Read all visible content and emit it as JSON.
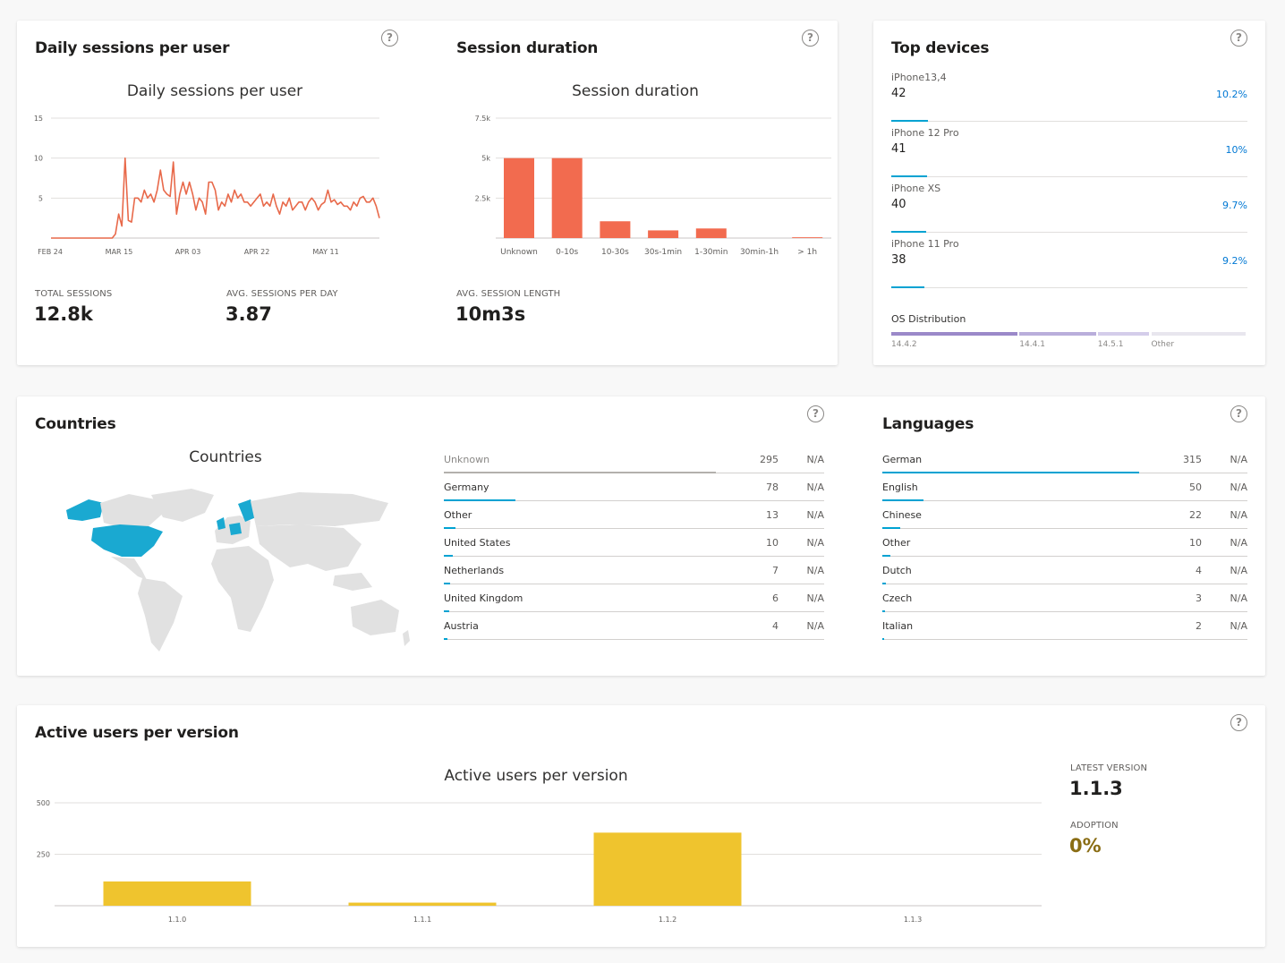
{
  "sessions_card": {
    "title": "Daily sessions per user",
    "chart_title": "Daily sessions per user",
    "total_sessions_label": "TOTAL SESSIONS",
    "total_sessions_value": "12.8k",
    "avg_sessions_label": "AVG. SESSIONS PER DAY",
    "avg_sessions_value": "3.87"
  },
  "duration_card": {
    "title": "Session duration",
    "chart_title": "Session duration",
    "avg_length_label": "AVG. SESSION LENGTH",
    "avg_length_value": "10m3s"
  },
  "devices_card": {
    "title": "Top devices",
    "devices": [
      {
        "name": "iPhone13,4",
        "count": "42",
        "pct": "10.2%",
        "share": 0.102
      },
      {
        "name": "iPhone 12 Pro",
        "count": "41",
        "pct": "10%",
        "share": 0.1
      },
      {
        "name": "iPhone XS",
        "count": "40",
        "pct": "9.7%",
        "share": 0.097
      },
      {
        "name": "iPhone 11 Pro",
        "count": "38",
        "pct": "9.2%",
        "share": 0.092
      }
    ],
    "os_label": "OS Distribution",
    "os": [
      {
        "name": "14.4.2",
        "share": 0.36,
        "color": "#9b89c9"
      },
      {
        "name": "14.4.1",
        "share": 0.22,
        "color": "#b9aedb"
      },
      {
        "name": "14.5.1",
        "share": 0.15,
        "color": "#d4cdea"
      },
      {
        "name": "Other",
        "share": 0.27,
        "color": "#e8e6ee"
      }
    ]
  },
  "countries_card": {
    "title": "Countries",
    "chart_title": "Countries",
    "rows": [
      {
        "name": "Unknown",
        "count": "295",
        "na": "N/A",
        "share": 1.0,
        "color": "#b3b0ad"
      },
      {
        "name": "Germany",
        "count": "78",
        "na": "N/A",
        "share": 0.264,
        "color": "#00a2d2"
      },
      {
        "name": "Other",
        "count": "13",
        "na": "N/A",
        "share": 0.044,
        "color": "#00a2d2"
      },
      {
        "name": "United States",
        "count": "10",
        "na": "N/A",
        "share": 0.034,
        "color": "#00a2d2"
      },
      {
        "name": "Netherlands",
        "count": "7",
        "na": "N/A",
        "share": 0.024,
        "color": "#00a2d2"
      },
      {
        "name": "United Kingdom",
        "count": "6",
        "na": "N/A",
        "share": 0.02,
        "color": "#00a2d2"
      },
      {
        "name": "Austria",
        "count": "4",
        "na": "N/A",
        "share": 0.014,
        "color": "#00a2d2"
      }
    ]
  },
  "languages_card": {
    "title": "Languages",
    "rows": [
      {
        "name": "German",
        "count": "315",
        "na": "N/A",
        "share": 1.0
      },
      {
        "name": "English",
        "count": "50",
        "na": "N/A",
        "share": 0.159
      },
      {
        "name": "Chinese",
        "count": "22",
        "na": "N/A",
        "share": 0.07
      },
      {
        "name": "Other",
        "count": "10",
        "na": "N/A",
        "share": 0.032
      },
      {
        "name": "Dutch",
        "count": "4",
        "na": "N/A",
        "share": 0.013
      },
      {
        "name": "Czech",
        "count": "3",
        "na": "N/A",
        "share": 0.01
      },
      {
        "name": "Italian",
        "count": "2",
        "na": "N/A",
        "share": 0.006
      }
    ]
  },
  "versions_card": {
    "title": "Active users per version",
    "chart_title": "Active users per version",
    "latest_label": "LATEST VERSION",
    "latest_value": "1.1.3",
    "adoption_label": "ADOPTION",
    "adoption_value": "0%",
    "adoption_color": "#8a6d14"
  },
  "help_glyph": "?",
  "chart_data": [
    {
      "type": "line",
      "title": "Daily sessions per user",
      "x_ticks": [
        "FEB 24",
        "MAR 15",
        "APR 03",
        "APR 22",
        "MAY 11"
      ],
      "ylim": [
        0,
        15
      ],
      "y_ticks": [
        5,
        10,
        15
      ],
      "color": "#e8694a",
      "values": [
        0,
        0,
        0,
        0,
        0,
        0,
        0,
        0,
        0,
        0,
        0,
        0,
        0,
        0,
        0,
        0,
        0,
        0,
        0,
        0,
        0.5,
        3,
        1.5,
        10,
        2.2,
        2,
        5,
        5,
        4.5,
        6,
        5,
        5.5,
        4.5,
        6,
        8.5,
        6,
        5.5,
        5.2,
        9.5,
        3,
        5.5,
        7,
        5.5,
        7,
        5.5,
        3.5,
        5,
        4.5,
        3,
        7,
        7,
        6,
        3.5,
        4.5,
        4,
        5.5,
        4.5,
        6,
        5,
        5.5,
        4.5,
        4.5,
        4,
        4.5,
        5,
        5.5,
        4,
        4.5,
        4,
        5.5,
        4,
        3,
        4.5,
        4,
        5,
        3.5,
        4,
        4.5,
        4.5,
        3.5,
        4.5,
        5,
        4.5,
        3.5,
        4.2,
        4.5,
        6,
        4.5,
        4.8,
        4.2,
        4.5,
        4,
        4,
        3.5,
        4.5,
        4,
        5,
        5.2,
        4.5,
        4.5,
        5,
        4,
        2.5
      ]
    },
    {
      "type": "bar",
      "title": "Session duration",
      "categories": [
        "Unknown",
        "0-10s",
        "10-30s",
        "30s-1min",
        "1-30min",
        "30min-1h",
        "> 1h"
      ],
      "values": [
        5000,
        5000,
        1050,
        480,
        600,
        0,
        50
      ],
      "ylim": [
        0,
        7500
      ],
      "y_ticks": [
        "2.5k",
        "5k",
        "7.5k"
      ],
      "y_tick_values": [
        2500,
        5000,
        7500
      ],
      "color": "#f26b4f"
    },
    {
      "type": "bar",
      "title": "Active users per version",
      "categories": [
        "1.1.0",
        "1.1.1",
        "1.1.2",
        "1.1.3"
      ],
      "values": [
        118,
        15,
        355,
        0
      ],
      "ylim": [
        0,
        500
      ],
      "y_ticks": [
        250,
        500
      ],
      "color": "#efc42e"
    }
  ]
}
